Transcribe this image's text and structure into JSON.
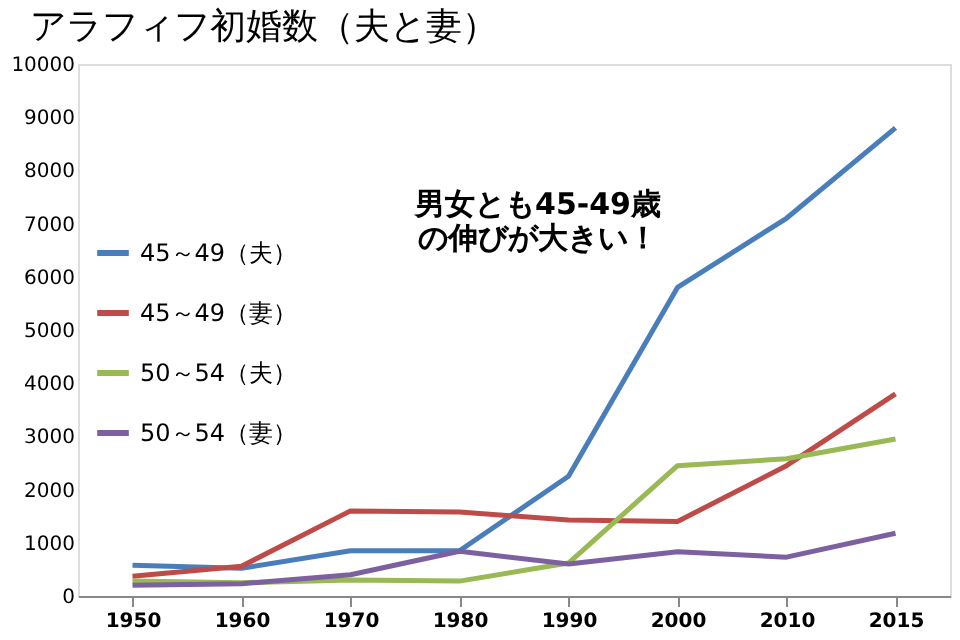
{
  "chart_data": {
    "type": "line",
    "title": "アラフィフ初婚数（夫と妻）",
    "categories": [
      "1950",
      "1960",
      "1970",
      "1980",
      "1990",
      "2000",
      "2010",
      "2015"
    ],
    "series": [
      {
        "name": "45～49（夫）",
        "color": "#4a7ebb",
        "values": [
          580,
          520,
          850,
          850,
          2250,
          5800,
          7100,
          8800
        ]
      },
      {
        "name": "45～49（妻）",
        "color": "#be4b48",
        "values": [
          370,
          560,
          1600,
          1580,
          1430,
          1400,
          2450,
          3800
        ]
      },
      {
        "name": "50～54（夫）",
        "color": "#98b954",
        "values": [
          280,
          250,
          300,
          280,
          620,
          2450,
          2580,
          2950
        ]
      },
      {
        "name": "50～54（妻）",
        "color": "#7d60a0",
        "values": [
          200,
          230,
          400,
          840,
          600,
          830,
          730,
          1180
        ]
      }
    ],
    "ylim": [
      0,
      10000
    ],
    "yticks": [
      0,
      1000,
      2000,
      3000,
      4000,
      5000,
      6000,
      7000,
      8000,
      9000,
      10000
    ],
    "grid": false,
    "legend": "left",
    "marker": "none",
    "line_style": "solid",
    "annotations": [
      "男女とも45-49歳の伸びが大きい！"
    ]
  }
}
